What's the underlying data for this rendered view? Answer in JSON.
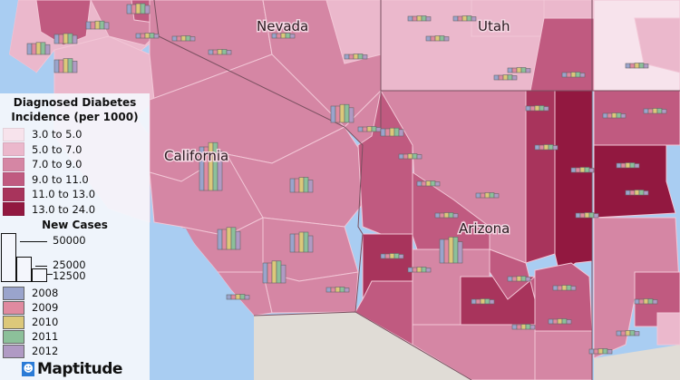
{
  "map": {
    "state_labels": {
      "nevada": "Nevada",
      "utah": "Utah",
      "california": "California",
      "arizona": "Arizona"
    },
    "colors": {
      "ocean": "#a9cdf2",
      "mexico": "#e0dcd6"
    }
  },
  "legend": {
    "title_line1": "Diagnosed Diabetes",
    "title_line2": "Incidence (per 1000)",
    "classes": [
      {
        "label": "3.0 to 5.0",
        "color": "#f7e3ec"
      },
      {
        "label": "5.0 to 7.0",
        "color": "#ebb8cc"
      },
      {
        "label": "7.0 to 9.0",
        "color": "#d586a4"
      },
      {
        "label": "9.0 to 11.0",
        "color": "#c05a80"
      },
      {
        "label": "11.0 to 13.0",
        "color": "#a8345c"
      },
      {
        "label": "13.0 to 24.0",
        "color": "#921840"
      }
    ],
    "new_cases_title": "New Cases",
    "size_scale": [
      "50000",
      "25000",
      "12500"
    ],
    "years": [
      {
        "label": "2008",
        "color": "#9aa4cc"
      },
      {
        "label": "2009",
        "color": "#e08aa0"
      },
      {
        "label": "2010",
        "color": "#dcc87a"
      },
      {
        "label": "2011",
        "color": "#8cc09a"
      },
      {
        "label": "2012",
        "color": "#b09ac4"
      }
    ]
  },
  "logo": {
    "text": "Maptitude"
  }
}
